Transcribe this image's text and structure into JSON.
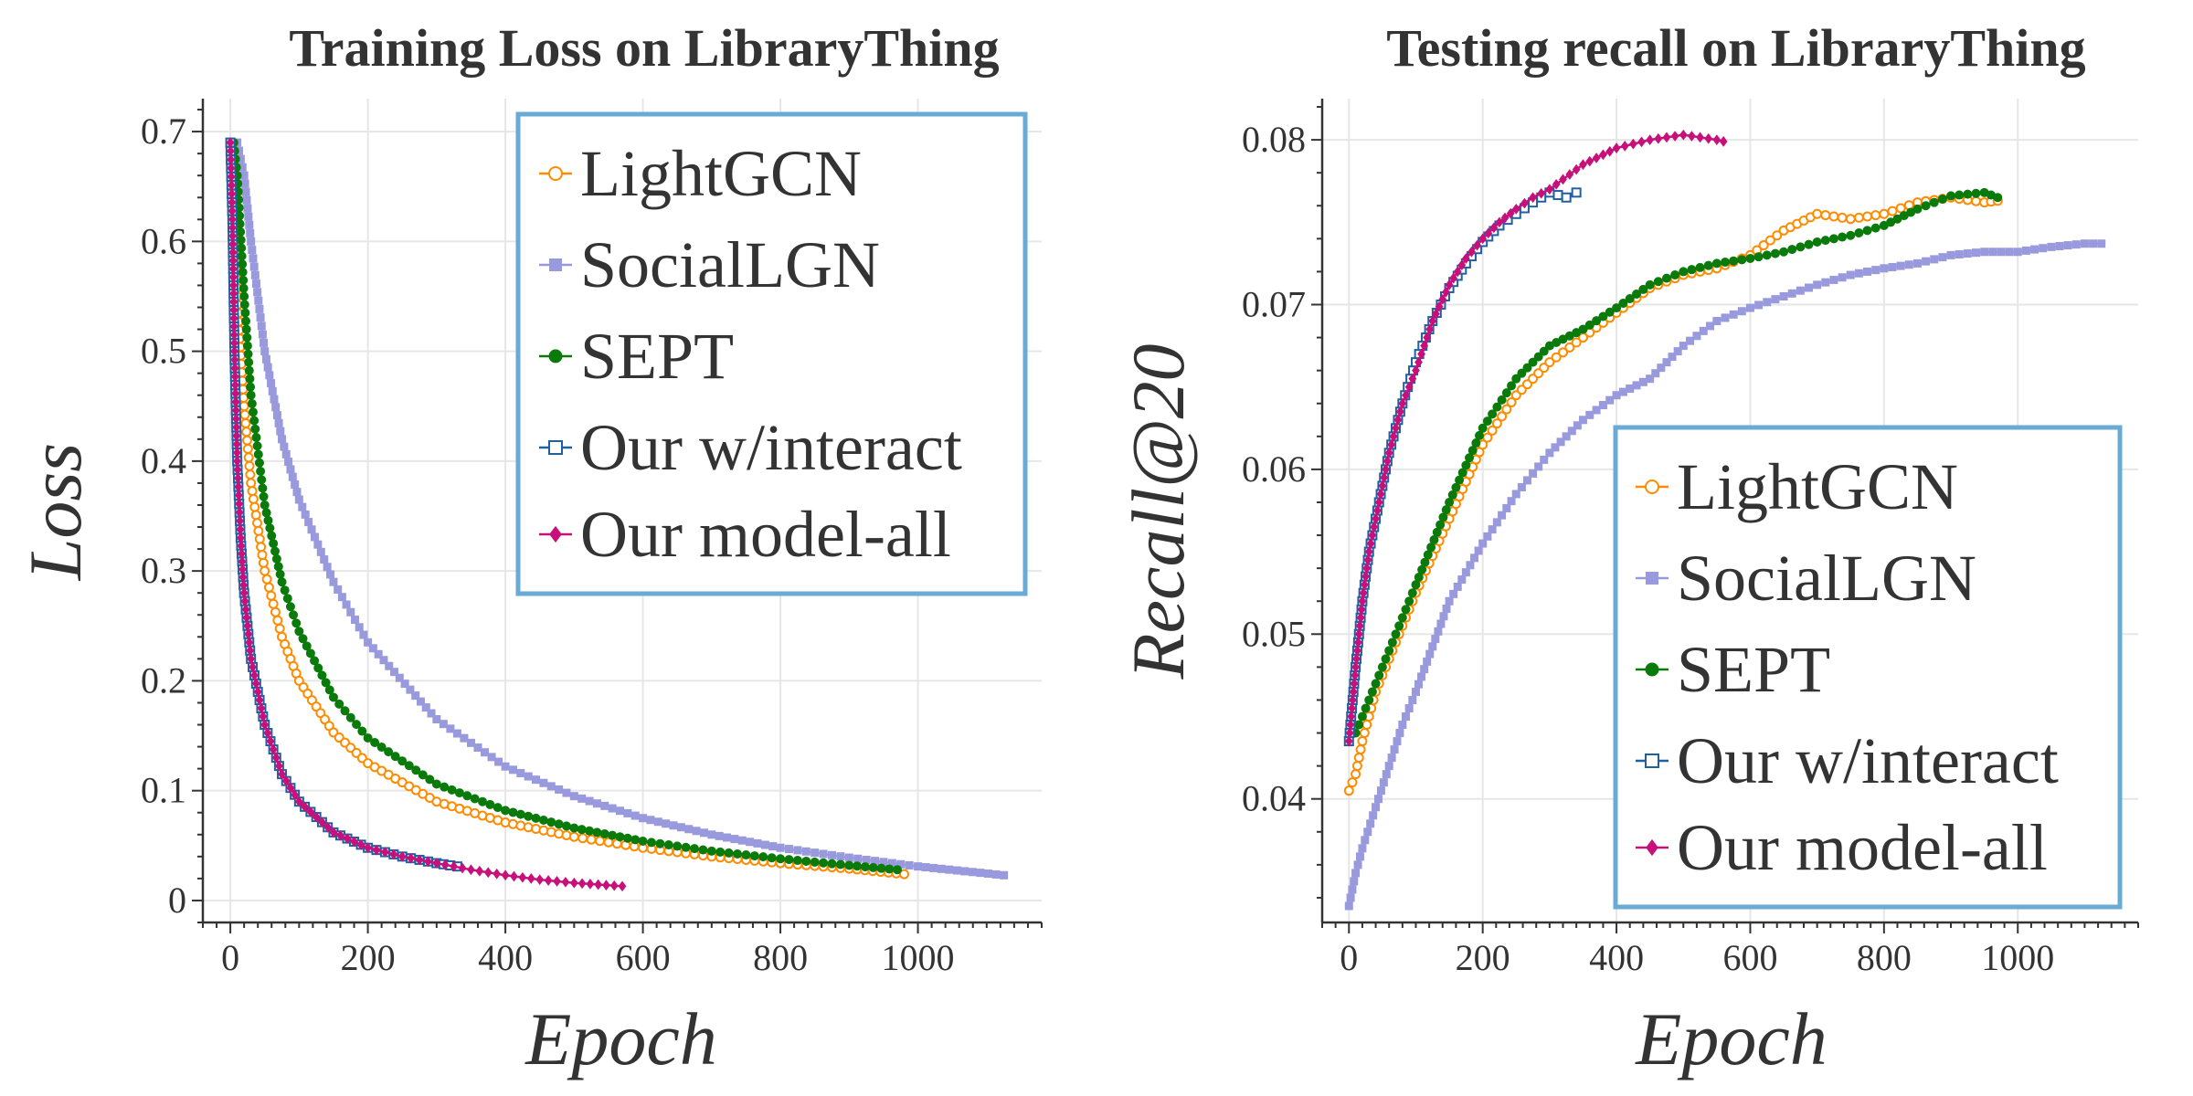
{
  "chart_data": [
    {
      "type": "line",
      "title": "Training Loss on LibraryThing",
      "xlabel": "Epoch",
      "ylabel": "Loss",
      "xlim": [
        -40,
        1180
      ],
      "ylim": [
        -0.02,
        0.73
      ],
      "xticks": [
        0,
        200,
        400,
        600,
        800,
        1000
      ],
      "xtick_labels": [
        "0",
        "200",
        "400",
        "600",
        "800",
        "1000"
      ],
      "yticks": [
        0,
        0.1,
        0.2,
        0.3,
        0.4,
        0.5,
        0.6,
        0.7
      ],
      "ytick_labels": [
        "0",
        "0.1",
        "0.2",
        "0.3",
        "0.4",
        "0.5",
        "0.6",
        "0.7"
      ],
      "grid": true,
      "legend_position": "top-right",
      "series": [
        {
          "name": "LightGCN",
          "color": "#ff8c00",
          "marker": "circle-open",
          "x": [
            0,
            5,
            10,
            20,
            30,
            50,
            75,
            100,
            150,
            200,
            300,
            400,
            500,
            600,
            700,
            800,
            900,
            980
          ],
          "y": [
            0.69,
            0.62,
            0.55,
            0.45,
            0.38,
            0.3,
            0.24,
            0.2,
            0.153,
            0.125,
            0.09,
            0.071,
            0.058,
            0.048,
            0.04,
            0.034,
            0.029,
            0.024
          ]
        },
        {
          "name": "SocialLGN",
          "color": "#9999dd",
          "marker": "square",
          "x": [
            0,
            10,
            20,
            30,
            50,
            75,
            100,
            150,
            200,
            300,
            400,
            500,
            600,
            700,
            800,
            900,
            1000,
            1125
          ],
          "y": [
            0.69,
            0.69,
            0.66,
            0.6,
            0.5,
            0.42,
            0.365,
            0.29,
            0.235,
            0.165,
            0.122,
            0.095,
            0.075,
            0.06,
            0.048,
            0.039,
            0.031,
            0.023
          ]
        },
        {
          "name": "SEPT",
          "color": "#0a7a0a",
          "marker": "circle",
          "x": [
            0,
            5,
            10,
            20,
            30,
            50,
            75,
            100,
            150,
            200,
            300,
            400,
            500,
            600,
            700,
            800,
            900,
            970
          ],
          "y": [
            0.69,
            0.69,
            0.66,
            0.55,
            0.46,
            0.36,
            0.29,
            0.245,
            0.185,
            0.148,
            0.106,
            0.082,
            0.066,
            0.054,
            0.045,
            0.038,
            0.032,
            0.028
          ]
        },
        {
          "name": "Our w/interact",
          "color": "#2060a0",
          "marker": "square-open",
          "x": [
            0,
            3,
            6,
            10,
            15,
            20,
            30,
            50,
            75,
            100,
            150,
            200,
            250,
            300,
            330
          ],
          "y": [
            0.69,
            0.62,
            0.5,
            0.4,
            0.33,
            0.28,
            0.22,
            0.16,
            0.115,
            0.09,
            0.062,
            0.048,
            0.04,
            0.034,
            0.031
          ]
        },
        {
          "name": "Our model-all",
          "color": "#c8107a",
          "marker": "diamond",
          "x": [
            0,
            3,
            6,
            10,
            15,
            20,
            30,
            50,
            75,
            100,
            150,
            200,
            250,
            300,
            350,
            400,
            450,
            500,
            570
          ],
          "y": [
            0.69,
            0.62,
            0.5,
            0.4,
            0.33,
            0.28,
            0.22,
            0.16,
            0.115,
            0.09,
            0.062,
            0.048,
            0.04,
            0.034,
            0.028,
            0.023,
            0.019,
            0.016,
            0.013
          ]
        }
      ]
    },
    {
      "type": "line",
      "title": "Testing recall on LibraryThing",
      "xlabel": "Epoch",
      "ylabel": "Recall@20",
      "xlim": [
        -40,
        1180
      ],
      "ylim": [
        0.0325,
        0.0825
      ],
      "xticks": [
        0,
        200,
        400,
        600,
        800,
        1000
      ],
      "xtick_labels": [
        "0",
        "200",
        "400",
        "600",
        "800",
        "1000"
      ],
      "yticks": [
        0.04,
        0.05,
        0.06,
        0.07,
        0.08
      ],
      "ytick_labels": [
        "0.04",
        "0.05",
        "0.06",
        "0.07",
        "0.08"
      ],
      "grid": true,
      "legend_position": "lower-right",
      "series": [
        {
          "name": "LightGCN",
          "color": "#ff8c00",
          "marker": "circle-open",
          "x": [
            0,
            10,
            20,
            40,
            60,
            80,
            100,
            150,
            200,
            250,
            300,
            350,
            400,
            450,
            500,
            550,
            600,
            650,
            700,
            750,
            800,
            850,
            900,
            950,
            970
          ],
          "y": [
            0.0405,
            0.0415,
            0.0435,
            0.0465,
            0.0485,
            0.0505,
            0.0525,
            0.057,
            0.0615,
            0.0645,
            0.0665,
            0.068,
            0.0695,
            0.071,
            0.0718,
            0.0722,
            0.073,
            0.0745,
            0.0755,
            0.0752,
            0.0755,
            0.0762,
            0.0765,
            0.0762,
            0.0763
          ]
        },
        {
          "name": "SocialLGN",
          "color": "#9999dd",
          "marker": "square",
          "x": [
            0,
            10,
            20,
            40,
            60,
            80,
            100,
            150,
            200,
            250,
            300,
            350,
            400,
            450,
            500,
            550,
            600,
            650,
            700,
            750,
            800,
            850,
            900,
            950,
            1000,
            1050,
            1100,
            1125
          ],
          "y": [
            0.0335,
            0.0355,
            0.037,
            0.0395,
            0.042,
            0.0445,
            0.0465,
            0.052,
            0.0555,
            0.0585,
            0.061,
            0.063,
            0.0645,
            0.0655,
            0.0675,
            0.069,
            0.0698,
            0.0705,
            0.0712,
            0.0718,
            0.0722,
            0.0725,
            0.073,
            0.0732,
            0.0732,
            0.0735,
            0.0737,
            0.0737
          ]
        },
        {
          "name": "SEPT",
          "color": "#0a7a0a",
          "marker": "circle",
          "x": [
            0,
            10,
            20,
            40,
            60,
            80,
            100,
            150,
            200,
            250,
            300,
            350,
            400,
            450,
            500,
            550,
            600,
            650,
            700,
            750,
            800,
            850,
            900,
            950,
            970
          ],
          "y": [
            0.0435,
            0.044,
            0.045,
            0.047,
            0.049,
            0.051,
            0.053,
            0.058,
            0.0625,
            0.0655,
            0.0675,
            0.0685,
            0.0698,
            0.0712,
            0.072,
            0.0725,
            0.0728,
            0.0732,
            0.0738,
            0.0742,
            0.0748,
            0.0758,
            0.0766,
            0.0768,
            0.0765
          ]
        },
        {
          "name": "Our w/interact",
          "color": "#2060a0",
          "marker": "square-open",
          "x": [
            0,
            10,
            20,
            30,
            40,
            60,
            80,
            100,
            125,
            150,
            175,
            200,
            225,
            250,
            275,
            300,
            325,
            340
          ],
          "y": [
            0.0435,
            0.048,
            0.052,
            0.055,
            0.057,
            0.061,
            0.064,
            0.0665,
            0.069,
            0.071,
            0.0725,
            0.0738,
            0.0748,
            0.0755,
            0.0762,
            0.0768,
            0.0765,
            0.0768
          ]
        },
        {
          "name": "Our model-all",
          "color": "#c8107a",
          "marker": "diamond",
          "x": [
            0,
            10,
            20,
            30,
            40,
            60,
            80,
            100,
            125,
            150,
            175,
            200,
            225,
            250,
            275,
            300,
            350,
            400,
            450,
            500,
            550,
            560
          ],
          "y": [
            0.0435,
            0.048,
            0.052,
            0.055,
            0.057,
            0.061,
            0.064,
            0.066,
            0.069,
            0.0712,
            0.0728,
            0.074,
            0.075,
            0.0758,
            0.0765,
            0.077,
            0.0785,
            0.0795,
            0.08,
            0.0803,
            0.08,
            0.0799
          ]
        }
      ]
    }
  ]
}
